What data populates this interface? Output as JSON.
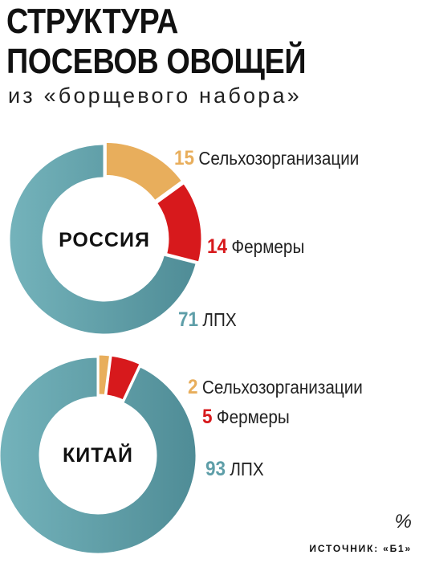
{
  "header": {
    "title_line1": "СТРУКТУРА",
    "title_line2": "ПОСЕВОВ ОВОЩЕЙ",
    "subtitle": "из «борщевого набора»"
  },
  "footer": {
    "unit": "%",
    "source": "ИСТОЧНИК: «Б1»"
  },
  "colors": {
    "agro": "#E8AE5C",
    "farmers": "#D7191C",
    "households": "#5E9EA8"
  },
  "chart_data": [
    {
      "type": "pie",
      "center_label": "РОССИЯ",
      "categories": [
        "Сельхозорганизации",
        "Фермеры",
        "ЛПХ"
      ],
      "values": [
        15,
        14,
        71
      ],
      "unit": "%"
    },
    {
      "type": "pie",
      "center_label": "КИТАЙ",
      "categories": [
        "Сельхозорганизации",
        "Фермеры",
        "ЛПХ"
      ],
      "values": [
        2,
        5,
        93
      ],
      "unit": "%"
    }
  ]
}
